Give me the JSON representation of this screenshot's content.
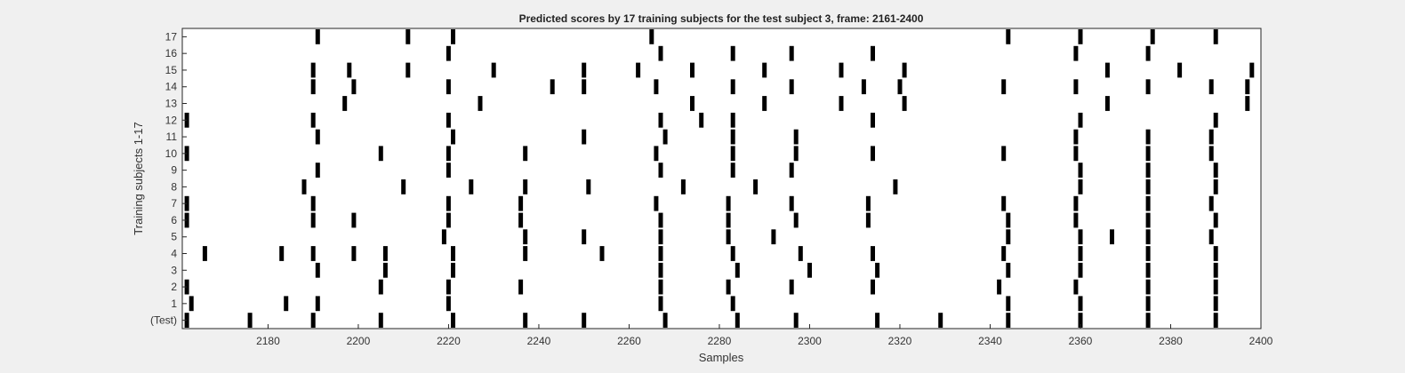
{
  "chart_data": {
    "type": "raster",
    "title": "Predicted scores by 17 training subjects for the test subject 3, frame: 2161-2400",
    "xlabel": "Samples",
    "ylabel": "Training subjects 1-17",
    "xlim": [
      2161,
      2400
    ],
    "xticks": [
      2180,
      2200,
      2220,
      2240,
      2260,
      2280,
      2300,
      2320,
      2340,
      2360,
      2380,
      2400
    ],
    "rows": [
      "(Test)",
      "1",
      "2",
      "3",
      "4",
      "5",
      "6",
      "7",
      "8",
      "9",
      "10",
      "11",
      "12",
      "13",
      "14",
      "15",
      "16",
      "17"
    ],
    "spikes": [
      [
        2162,
        2176,
        2190,
        2205,
        2221,
        2237,
        2250,
        2268,
        2284,
        2297,
        2315,
        2329,
        2344,
        2360,
        2375,
        2390
      ],
      [
        2163,
        2184,
        2191,
        2220,
        2267,
        2283,
        2344,
        2360,
        2375,
        2390
      ],
      [
        2162,
        2205,
        2220,
        2236,
        2267,
        2282,
        2296,
        2314,
        2342,
        2359,
        2375,
        2390
      ],
      [
        2191,
        2206,
        2221,
        2267,
        2284,
        2300,
        2315,
        2344,
        2360,
        2375,
        2390
      ],
      [
        2166,
        2183,
        2190,
        2199,
        2206,
        2221,
        2237,
        2254,
        2267,
        2283,
        2298,
        2314,
        2343,
        2360,
        2375,
        2390
      ],
      [
        2219,
        2237,
        2250,
        2267,
        2282,
        2292,
        2344,
        2360,
        2367,
        2375,
        2389
      ],
      [
        2162,
        2190,
        2199,
        2220,
        2236,
        2267,
        2282,
        2297,
        2313,
        2344,
        2359,
        2375,
        2390
      ],
      [
        2162,
        2190,
        2220,
        2236,
        2266,
        2282,
        2296,
        2313,
        2343,
        2359,
        2375,
        2389
      ],
      [
        2188,
        2210,
        2225,
        2237,
        2251,
        2272,
        2288,
        2319,
        2360,
        2375,
        2390
      ],
      [
        2191,
        2220,
        2267,
        2283,
        2296,
        2360,
        2375,
        2390
      ],
      [
        2162,
        2205,
        2220,
        2237,
        2266,
        2283,
        2297,
        2314,
        2343,
        2359,
        2375,
        2389
      ],
      [
        2191,
        2221,
        2250,
        2268,
        2283,
        2297,
        2359,
        2375,
        2389
      ],
      [
        2162,
        2190,
        2220,
        2267,
        2276,
        2283,
        2314,
        2360,
        2390
      ],
      [
        2197,
        2227,
        2274,
        2290,
        2307,
        2321,
        2366,
        2397
      ],
      [
        2190,
        2199,
        2220,
        2243,
        2250,
        2266,
        2283,
        2296,
        2312,
        2320,
        2343,
        2359,
        2375,
        2389,
        2397
      ],
      [
        2190,
        2198,
        2211,
        2230,
        2250,
        2262,
        2274,
        2290,
        2307,
        2321,
        2366,
        2382,
        2398
      ],
      [
        2220,
        2267,
        2283,
        2296,
        2314,
        2359,
        2375
      ],
      [
        2191,
        2211,
        2221,
        2265,
        2344,
        2360,
        2376,
        2390
      ]
    ],
    "mark_color": "#000000",
    "background": "#ffffff",
    "grid": false,
    "legend": "none"
  }
}
